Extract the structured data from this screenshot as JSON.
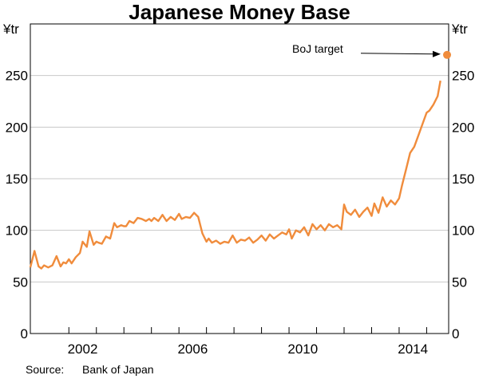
{
  "chart_data": {
    "type": "line",
    "title": "Japanese Money Base",
    "y_unit_left": "¥tr",
    "y_unit_right": "¥tr",
    "ylim": [
      0,
      300
    ],
    "xlim": [
      1999.6,
      2014.8
    ],
    "yticks": [
      0,
      50,
      100,
      150,
      200,
      250
    ],
    "xtick_labels": [
      "2002",
      "2006",
      "2010",
      "2014"
    ],
    "grid": true,
    "line_color": "#f08c3c",
    "series": [
      {
        "x": [
          1999.6,
          1999.75,
          1999.9,
          2000.0,
          2000.1,
          2000.25,
          2000.4,
          2000.55,
          2000.7,
          2000.8,
          2000.9,
          2001.0,
          2001.1,
          2001.25,
          2001.4,
          2001.5,
          2001.65,
          2001.75,
          2001.9,
          2002.0,
          2002.08,
          2002.2,
          2002.35,
          2002.5,
          2002.65,
          2002.75,
          2002.9,
          2003.0,
          2003.08,
          2003.2,
          2003.35,
          2003.5,
          2003.65,
          2003.8,
          2003.92,
          2004.0,
          2004.1,
          2004.25,
          2004.4,
          2004.55,
          2004.7,
          2004.85,
          2005.0,
          2005.1,
          2005.25,
          2005.4,
          2005.55,
          2005.7,
          2005.85,
          2006.0,
          2006.08,
          2006.2,
          2006.35,
          2006.5,
          2006.65,
          2006.8,
          2006.95,
          2007.1,
          2007.25,
          2007.4,
          2007.55,
          2007.7,
          2007.85,
          2008.0,
          2008.15,
          2008.3,
          2008.45,
          2008.6,
          2008.75,
          2008.9,
          2009.0,
          2009.1,
          2009.25,
          2009.4,
          2009.55,
          2009.7,
          2009.85,
          2010.0,
          2010.15,
          2010.3,
          2010.45,
          2010.6,
          2010.75,
          2010.9,
          2011.0,
          2011.1,
          2011.25,
          2011.4,
          2011.55,
          2011.7,
          2011.85,
          2012.0,
          2012.1,
          2012.25,
          2012.4,
          2012.55,
          2012.7,
          2012.85,
          2013.0,
          2013.1,
          2013.25,
          2013.4,
          2013.55,
          2013.7,
          2013.85,
          2014.0,
          2014.1,
          2014.25,
          2014.4,
          2014.5
        ],
        "values": [
          64,
          80,
          65,
          63,
          66,
          64,
          66,
          75,
          65,
          69,
          68,
          72,
          68,
          74,
          78,
          89,
          84,
          99,
          86,
          89,
          88,
          87,
          94,
          92,
          107,
          103,
          105,
          104,
          104,
          109,
          107,
          112,
          111,
          109,
          111,
          109,
          112,
          109,
          115,
          109,
          113,
          110,
          116,
          111,
          113,
          112,
          117,
          113,
          97,
          89,
          92,
          88,
          90,
          87,
          89,
          88,
          95,
          88,
          91,
          90,
          93,
          88,
          91,
          95,
          90,
          96,
          92,
          95,
          98,
          96,
          101,
          92,
          100,
          98,
          103,
          95,
          106,
          101,
          105,
          100,
          106,
          103,
          105,
          101,
          125,
          118,
          115,
          120,
          113,
          118,
          122,
          114,
          126,
          117,
          132,
          123,
          129,
          125,
          131,
          143,
          159,
          175,
          181,
          192,
          203,
          214,
          216,
          222,
          230,
          245
        ]
      }
    ],
    "annotation": {
      "text": "BoJ target",
      "x": 2014.8,
      "y": 270,
      "color": "#f08c3c"
    },
    "source_label": "Source:",
    "source_value": "Bank of Japan"
  }
}
